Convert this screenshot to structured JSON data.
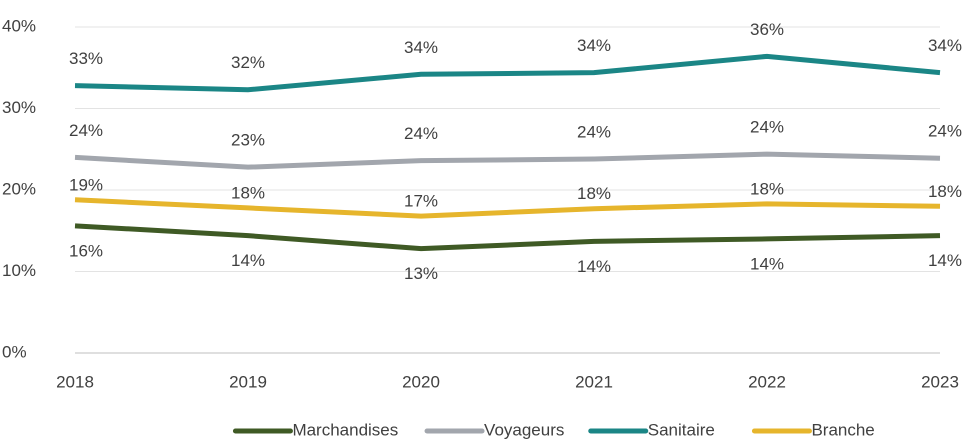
{
  "chart_data": {
    "type": "line",
    "categories": [
      "2018",
      "2019",
      "2020",
      "2021",
      "2022",
      "2023"
    ],
    "series": [
      {
        "name": "Marchandises",
        "color": "#3f5a25",
        "values": [
          15.6,
          14.4,
          12.8,
          13.7,
          14.0,
          14.4
        ],
        "value_labels": [
          "16%",
          "14%",
          "13%",
          "14%",
          "14%",
          "14%"
        ]
      },
      {
        "name": "Voyageurs",
        "color": "#a2a6ad",
        "values": [
          24.0,
          22.8,
          23.6,
          23.8,
          24.4,
          23.9
        ],
        "value_labels": [
          "24%",
          "23%",
          "24%",
          "24%",
          "24%",
          "24%"
        ]
      },
      {
        "name": "Sanitaire",
        "color": "#1b8686",
        "values": [
          32.8,
          32.3,
          34.2,
          34.4,
          36.4,
          34.4
        ],
        "value_labels": [
          "33%",
          "32%",
          "34%",
          "34%",
          "36%",
          "34%"
        ]
      },
      {
        "name": "Branche",
        "color": "#e6b52c",
        "values": [
          18.8,
          17.8,
          16.8,
          17.7,
          18.3,
          18.0
        ],
        "value_labels": [
          "19%",
          "18%",
          "17%",
          "18%",
          "18%",
          "18%"
        ]
      }
    ],
    "ylim": [
      0,
      40
    ],
    "yticks": [
      {
        "value": 0,
        "label": "0%"
      },
      {
        "value": 10,
        "label": "10%"
      },
      {
        "value": 20,
        "label": "20%"
      },
      {
        "value": 30,
        "label": "30%"
      },
      {
        "value": 40,
        "label": "40%"
      }
    ],
    "grid": true,
    "legend": "bottom"
  }
}
